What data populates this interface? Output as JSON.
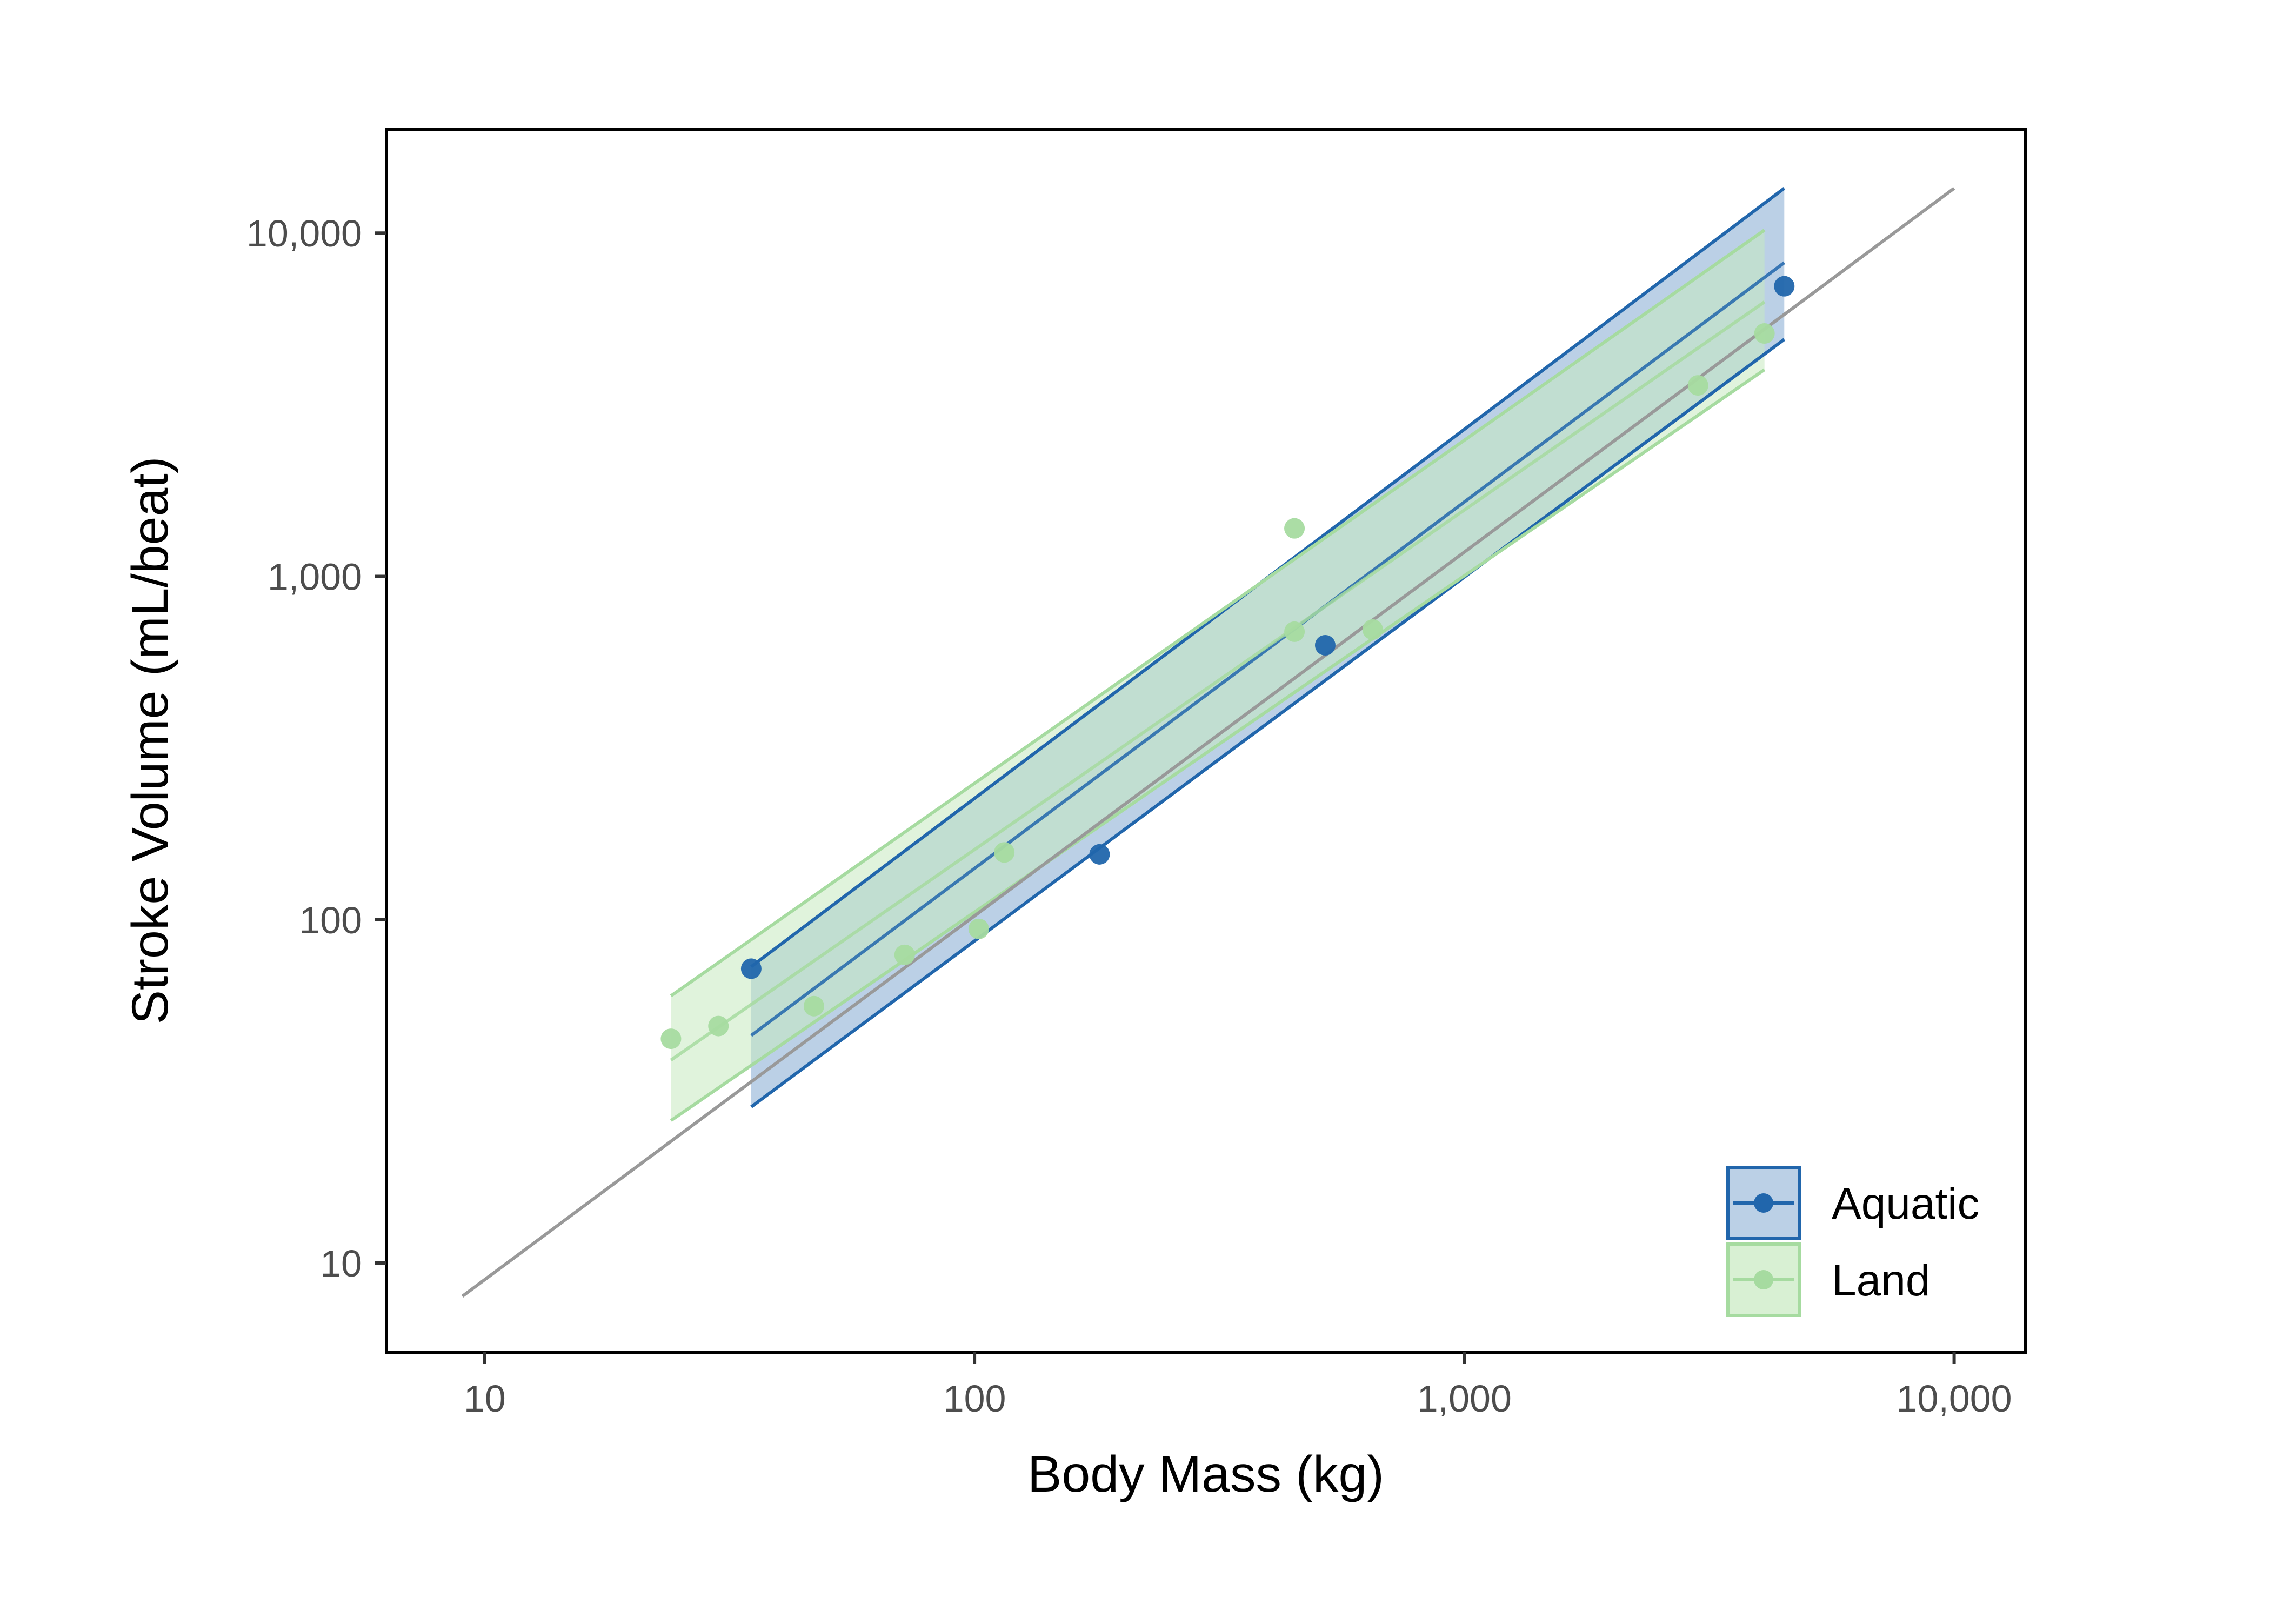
{
  "chart_data": {
    "type": "scatter",
    "title": "",
    "xlabel": "Body Mass (kg)",
    "ylabel": "Stroke Volume (mL/beat)",
    "x_scale": "log10",
    "y_scale": "log10",
    "xlim": [
      6.3,
      14000
    ],
    "ylim": [
      5.5,
      20000
    ],
    "x_ticks": [
      10,
      100,
      1000,
      10000
    ],
    "x_tick_labels": [
      "10",
      "100",
      "1,000",
      "10,000"
    ],
    "y_ticks": [
      10,
      100,
      1000,
      10000
    ],
    "y_tick_labels": [
      "10",
      "100",
      "1,000",
      "10,000"
    ],
    "grid": false,
    "legend_position": "bottom-right",
    "reference_line": {
      "color": "#999999",
      "x": [
        9,
        10000
      ],
      "y": [
        8,
        13500
      ]
    },
    "series": [
      {
        "name": "Aquatic",
        "color": "#2166ac",
        "fill": "#9ebcdb",
        "points": [
          {
            "x": 35,
            "y": 72
          },
          {
            "x": 180,
            "y": 155
          },
          {
            "x": 520,
            "y": 630
          },
          {
            "x": 4500,
            "y": 7000
          }
        ],
        "fit": {
          "x": [
            35,
            4500
          ],
          "y": [
            46,
            8200
          ]
        },
        "ci_upper": {
          "x": [
            35,
            4500
          ],
          "y": [
            73,
            13500
          ]
        },
        "ci_lower": {
          "x": [
            35,
            4500
          ],
          "y": [
            28.5,
            4900
          ]
        }
      },
      {
        "name": "Land",
        "color": "#a6dba0",
        "fill": "#c7e9c0",
        "points": [
          {
            "x": 24,
            "y": 45
          },
          {
            "x": 30,
            "y": 49
          },
          {
            "x": 47,
            "y": 56
          },
          {
            "x": 72,
            "y": 79
          },
          {
            "x": 102,
            "y": 94
          },
          {
            "x": 115,
            "y": 157
          },
          {
            "x": 450,
            "y": 1380
          },
          {
            "x": 450,
            "y": 690
          },
          {
            "x": 650,
            "y": 700
          },
          {
            "x": 3000,
            "y": 3600
          },
          {
            "x": 4100,
            "y": 5100
          }
        ],
        "fit": {
          "x": [
            24,
            4100
          ],
          "y": [
            39,
            6300
          ]
        },
        "ci_upper": {
          "x": [
            24,
            4100
          ],
          "y": [
            60,
            10200
          ]
        },
        "ci_lower": {
          "x": [
            24,
            4100
          ],
          "y": [
            26,
            4000
          ]
        }
      }
    ]
  }
}
